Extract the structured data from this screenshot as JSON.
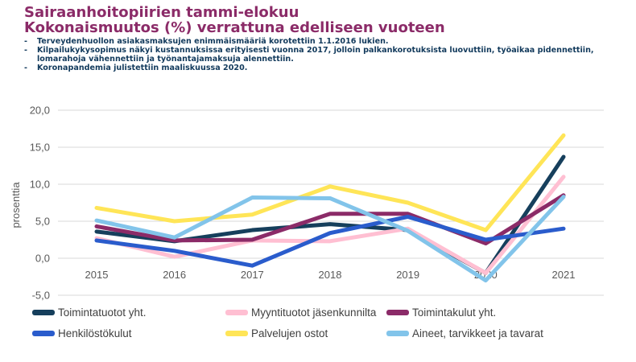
{
  "header": {
    "title_line1": "Sairaanhoitopiirien tammi-elokuu",
    "title_line2": "Kokonaismuutos (%) verrattuna edelliseen vuoteen",
    "notes": [
      "Terveydenhuollon asiakasmaksujen enimmäismääriä korotettiin 1.1.2016 lukien.",
      "Kilpailukykysopimus näkyi kustannuksissa erityisesti vuonna 2017, jolloin palkankorotuksista luovuttiin, työaikaa pidennettiin, lomarahoja vähennettiin ja työnantajamaksuja alennettiin.",
      "Koronapandemia julistettiin maaliskuussa 2020."
    ],
    "bullet": "-"
  },
  "chart_data": {
    "type": "line",
    "title": "",
    "xlabel": "",
    "ylabel": "prosenttia",
    "categories": [
      "2015",
      "2016",
      "2017",
      "2018",
      "2019",
      "2020",
      "2021"
    ],
    "ylim": [
      -5,
      20
    ],
    "yticks": [
      -5,
      0,
      5,
      10,
      15,
      20
    ],
    "ytick_labels": [
      "-5,0",
      "0,0",
      "5,0",
      "10,0",
      "15,0",
      "20,0"
    ],
    "grid": "horizontal",
    "legend_position": "bottom",
    "series": [
      {
        "name": "Toimintatuotot yht.",
        "color": "#163f5c",
        "values": [
          3.6,
          2.3,
          3.8,
          4.6,
          3.8,
          -2.0,
          13.7
        ]
      },
      {
        "name": "Myyntituotot jäsenkunnilta",
        "color": "#ffbfd2",
        "values": [
          2.7,
          0.2,
          2.4,
          2.3,
          4.0,
          -2.0,
          11.0
        ]
      },
      {
        "name": "Toimintakulut yht.",
        "color": "#8b2b68",
        "values": [
          4.3,
          2.4,
          2.5,
          6.0,
          6.0,
          2.0,
          8.5
        ]
      },
      {
        "name": "Henkilöstökulut",
        "color": "#2a5ccc",
        "values": [
          2.4,
          1.0,
          -1.0,
          3.4,
          5.6,
          2.5,
          4.0
        ]
      },
      {
        "name": "Palvelujen ostot",
        "color": "#ffe557",
        "values": [
          6.8,
          5.0,
          5.9,
          9.7,
          7.5,
          3.8,
          16.6
        ]
      },
      {
        "name": "Aineet, tarvikkeet ja tavarat",
        "color": "#82c4ea",
        "values": [
          5.1,
          2.8,
          8.2,
          8.1,
          3.7,
          -3.0,
          8.3
        ]
      }
    ]
  }
}
